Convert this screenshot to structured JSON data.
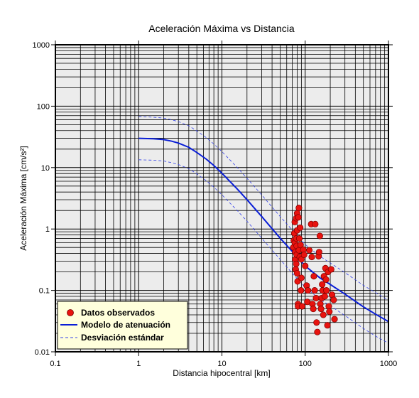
{
  "chart_data": {
    "type": "scatter",
    "title": "Aceleración Máxima vs Distancia",
    "xlabel": "Distancia hipocentral [km]",
    "ylabel": "Aceleración Máxima [cm/s²]",
    "xscale": "log",
    "yscale": "log",
    "xlim": [
      0.1,
      1000
    ],
    "ylim": [
      0.01,
      1000
    ],
    "xticks": [
      0.1,
      1,
      10,
      100,
      1000
    ],
    "xtick_labels": [
      "0.1",
      "1",
      "10",
      "100",
      "1000"
    ],
    "yticks": [
      0.01,
      0.1,
      1,
      10,
      100,
      1000
    ],
    "ytick_labels": [
      "0.01",
      "0.1",
      "1",
      "10",
      "100",
      "1000"
    ],
    "grid": true,
    "legend_position": "bottom-left",
    "colors": {
      "background": "#ececec",
      "grid": "#000000",
      "points": "#e8130f",
      "model": "#0a1ed6",
      "std": "#3340e8",
      "legend_bg": "#ffffdc"
    },
    "series": [
      {
        "name": "Datos observados",
        "kind": "points",
        "points": [
          [
            72,
            0.5
          ],
          [
            73,
            0.65
          ],
          [
            74,
            0.85
          ],
          [
            75,
            1.3
          ],
          [
            75,
            0.6
          ],
          [
            76,
            0.42
          ],
          [
            76,
            0.32
          ],
          [
            77,
            0.22
          ],
          [
            78,
            1.5
          ],
          [
            78,
            0.7
          ],
          [
            78,
            0.27
          ],
          [
            79,
            0.53
          ],
          [
            79,
            0.38
          ],
          [
            80,
            1.8
          ],
          [
            80,
            0.95
          ],
          [
            80,
            0.19
          ],
          [
            81,
            0.14
          ],
          [
            82,
            0.06
          ],
          [
            82,
            0.055
          ],
          [
            83,
            1.55
          ],
          [
            84,
            2.2
          ],
          [
            84,
            0.45
          ],
          [
            85,
            0.7
          ],
          [
            86,
            0.35
          ],
          [
            87,
            1.05
          ],
          [
            88,
            0.55
          ],
          [
            89,
            0.1
          ],
          [
            90,
            0.32
          ],
          [
            90,
            0.16
          ],
          [
            92,
            0.055
          ],
          [
            95,
            0.46
          ],
          [
            97,
            0.38
          ],
          [
            100,
            0.25
          ],
          [
            104,
            0.12
          ],
          [
            106,
            0.065
          ],
          [
            108,
            0.1
          ],
          [
            112,
            0.45
          ],
          [
            118,
            1.2
          ],
          [
            120,
            0.35
          ],
          [
            122,
            0.06
          ],
          [
            125,
            0.05
          ],
          [
            127,
            0.17
          ],
          [
            130,
            0.1
          ],
          [
            132,
            1.2
          ],
          [
            135,
            0.075
          ],
          [
            137,
            0.03
          ],
          [
            140,
            0.021
          ],
          [
            145,
            0.36
          ],
          [
            147,
            0.42
          ],
          [
            150,
            0.77
          ],
          [
            152,
            0.06
          ],
          [
            155,
            0.05
          ],
          [
            158,
            0.075
          ],
          [
            160,
            0.125
          ],
          [
            162,
            0.1
          ],
          [
            165,
            0.04
          ],
          [
            168,
            0.17
          ],
          [
            172,
            0.08
          ],
          [
            175,
            0.23
          ],
          [
            178,
            0.15
          ],
          [
            180,
            0.1
          ],
          [
            185,
            0.027
          ],
          [
            188,
            0.2
          ],
          [
            192,
            0.055
          ],
          [
            195,
            0.045
          ],
          [
            205,
            0.22
          ],
          [
            210,
            0.085
          ],
          [
            220,
            0.07
          ],
          [
            225,
            0.034
          ]
        ]
      },
      {
        "name": "Modelo de atenuación",
        "kind": "line",
        "points": [
          [
            1,
            30
          ],
          [
            1.5,
            29.5
          ],
          [
            2,
            28.6
          ],
          [
            2.5,
            26.9
          ],
          [
            3,
            25.1
          ],
          [
            4,
            21.4
          ],
          [
            5,
            17.6
          ],
          [
            6.5,
            13.7
          ],
          [
            8,
            10.8
          ],
          [
            10,
            8.1
          ],
          [
            15,
            4.6
          ],
          [
            20,
            3.0
          ],
          [
            30,
            1.6
          ],
          [
            50,
            0.71
          ],
          [
            70,
            0.43
          ],
          [
            100,
            0.25
          ],
          [
            150,
            0.16
          ],
          [
            200,
            0.125
          ],
          [
            300,
            0.087
          ],
          [
            500,
            0.054
          ],
          [
            700,
            0.041
          ],
          [
            1000,
            0.031
          ]
        ]
      },
      {
        "name": "Desviación estándar",
        "kind": "dashed",
        "points": [
          [
            1,
            68
          ],
          [
            1.5,
            66
          ],
          [
            2,
            64
          ],
          [
            2.5,
            60
          ],
          [
            3,
            56
          ],
          [
            4,
            48
          ],
          [
            5,
            39.5
          ],
          [
            6.5,
            30.7
          ],
          [
            8,
            24.2
          ],
          [
            10,
            18.2
          ],
          [
            15,
            10.3
          ],
          [
            20,
            6.7
          ],
          [
            30,
            3.6
          ],
          [
            50,
            1.6
          ],
          [
            70,
            0.96
          ],
          [
            100,
            0.56
          ],
          [
            150,
            0.36
          ],
          [
            200,
            0.28
          ],
          [
            300,
            0.195
          ],
          [
            500,
            0.121
          ],
          [
            700,
            0.092
          ],
          [
            1000,
            0.069
          ]
        ]
      },
      {
        "name": "",
        "kind": "dashed",
        "points": [
          [
            1,
            13.4
          ],
          [
            1.5,
            13.2
          ],
          [
            2,
            12.8
          ],
          [
            2.5,
            12.0
          ],
          [
            3,
            11.2
          ],
          [
            4,
            9.6
          ],
          [
            5,
            7.9
          ],
          [
            6.5,
            6.1
          ],
          [
            8,
            4.8
          ],
          [
            10,
            3.6
          ],
          [
            15,
            2.05
          ],
          [
            20,
            1.34
          ],
          [
            30,
            0.71
          ],
          [
            50,
            0.32
          ],
          [
            70,
            0.19
          ],
          [
            100,
            0.112
          ],
          [
            150,
            0.072
          ],
          [
            200,
            0.056
          ],
          [
            300,
            0.039
          ],
          [
            500,
            0.024
          ],
          [
            700,
            0.018
          ],
          [
            1000,
            0.0138
          ]
        ]
      }
    ],
    "legend": [
      {
        "label": "Datos observados",
        "marker": "circle"
      },
      {
        "label": "Modelo de atenuación",
        "marker": "solid-line"
      },
      {
        "label": "Desviación estándar",
        "marker": "dashed-line"
      }
    ]
  }
}
